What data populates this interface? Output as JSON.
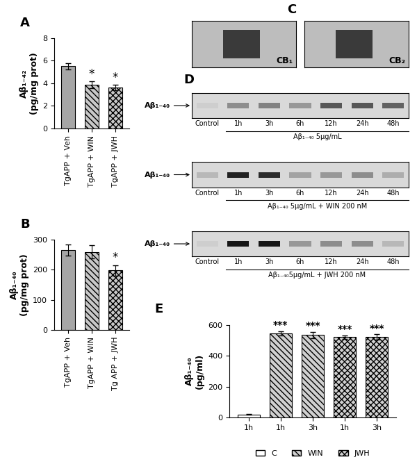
{
  "chart_data": [
    {
      "type": "bar",
      "title": "A",
      "y_label": "Aβ₁₋₄₂\n(pg/mg prot)",
      "categories": [
        "TgAPP + Veh",
        "TgAPP + WIN",
        "TgAPP + JWH"
      ],
      "values": [
        5.5,
        3.85,
        3.6
      ],
      "errors": [
        0.25,
        0.3,
        0.25
      ],
      "colors": [
        "#a6a6a6",
        "#c8c8c8",
        "#c8c8c8"
      ],
      "ylim": [
        0,
        8
      ],
      "yticks": [
        0,
        2,
        4,
        6,
        8
      ],
      "annotations": [
        {
          "text": "*",
          "category": "TgAPP + WIN"
        },
        {
          "text": "*",
          "category": "TgAPP + JWH"
        }
      ]
    },
    {
      "type": "bar",
      "title": "B",
      "y_label": "Aβ₁₋₄₀\n(pg/mg prot)",
      "categories": [
        "TgAPP + Veh",
        "TgAPP + WIN",
        "Tg APP + JWH"
      ],
      "values": [
        265,
        258,
        197
      ],
      "errors": [
        18,
        22,
        18
      ],
      "colors": [
        "#a6a6a6",
        "#c8c8c8",
        "#c8c8c8"
      ],
      "ylim": [
        0,
        300
      ],
      "yticks": [
        0,
        100,
        200,
        300
      ],
      "annotations": [
        {
          "text": "*",
          "category": "Tg APP + JWH"
        }
      ]
    },
    {
      "type": "bar",
      "title": "E",
      "y_label": "Aβ₁₋₄₀\n(pg/ml)",
      "categories": [
        "1h",
        "1h",
        "3h",
        "1h",
        "3h"
      ],
      "series": [
        {
          "name": "C",
          "color": "#ffffff",
          "values": [
            20,
            null,
            null,
            null,
            null
          ],
          "errors": [
            2,
            null,
            null,
            null,
            null
          ]
        },
        {
          "name": "WIN",
          "color": "#d0d0d0",
          "values": [
            null,
            545,
            535,
            null,
            null
          ],
          "errors": [
            null,
            15,
            20,
            null,
            null
          ]
        },
        {
          "name": "JWH",
          "color": "#d0d0d0",
          "values": [
            null,
            null,
            null,
            520,
            520
          ],
          "errors": [
            null,
            null,
            null,
            12,
            18
          ]
        }
      ],
      "ylim": [
        0,
        600
      ],
      "yticks": [
        0,
        200,
        400,
        600
      ],
      "legend": "lower center",
      "annotations": [
        {
          "text": "***",
          "series": "WIN"
        },
        {
          "text": "***",
          "series": "JWH"
        }
      ]
    }
  ],
  "images": {
    "title": "C",
    "labels": [
      "CB₁",
      "CB₂"
    ]
  },
  "blots": {
    "title": "D",
    "label": "Aβ₁₋₄₀",
    "lanes": [
      "Control",
      "1h",
      "3h",
      "6h",
      "12h",
      "24h",
      "48h"
    ],
    "rows": [
      {
        "caption": "Aβ₁₋₄₀ 5μg/mL",
        "intensity": [
          0.05,
          0.35,
          0.4,
          0.3,
          0.6,
          0.6,
          0.55
        ]
      },
      {
        "caption": "Aβ₁₋₄₀ 5μg/mL + WIN 200 nM",
        "intensity": [
          0.15,
          0.85,
          0.8,
          0.25,
          0.3,
          0.35,
          0.2
        ]
      },
      {
        "caption": "Aβ₁₋₄₀5μg/mL + JWH 200 nM",
        "intensity": [
          0.05,
          0.9,
          0.9,
          0.3,
          0.35,
          0.35,
          0.15
        ]
      }
    ]
  }
}
